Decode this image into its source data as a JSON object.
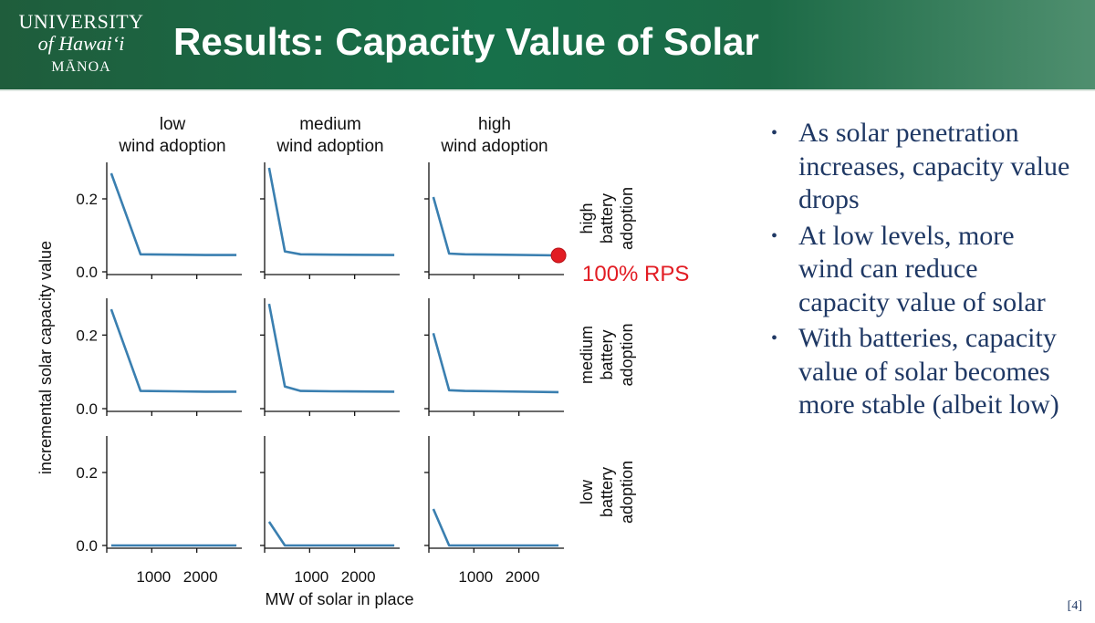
{
  "header": {
    "title": "Results: Capacity Value of Solar",
    "logo": {
      "line1": "University",
      "line2": "of Hawai‘i",
      "line3": "Mānoa"
    }
  },
  "colors": {
    "header_green": "#1f6b45",
    "series_line": "#3a7fb0",
    "marker_red": "#e21c23",
    "bullet_text": "#1f3864"
  },
  "bullets": [
    "As solar penetration increases, capacity value drops",
    "At low levels, more wind can reduce capacity value of solar",
    "With batteries, capacity value of solar becomes more stable (albeit low)"
  ],
  "page_number": "[4]",
  "chart_data": {
    "type": "line",
    "layout": "facet grid 3x3",
    "ylabel": "incremental solar capacity value",
    "xlabel": "MW of solar in place",
    "xticks": [
      1000,
      2000
    ],
    "yticks": [
      "0.0",
      "0.2"
    ],
    "ylim": [
      0,
      0.3
    ],
    "xlim": [
      0,
      3000
    ],
    "columns": [
      "low\nwind adoption",
      "medium\nwind adoption",
      "high\nwind adoption"
    ],
    "rows": [
      "high\nbattery\nadoption",
      "medium\nbattery\nadoption",
      "low\nbattery\nadoption"
    ],
    "annotation": {
      "text": "100% RPS",
      "row": 0,
      "col": 2,
      "x": 2880,
      "y": 0.045
    },
    "panels": [
      [
        {
          "x": [
            100,
            750,
            1500,
            2200,
            2880
          ],
          "y": [
            0.27,
            0.048,
            0.047,
            0.046,
            0.046
          ]
        },
        {
          "x": [
            100,
            450,
            800,
            1500,
            2880
          ],
          "y": [
            0.285,
            0.056,
            0.048,
            0.047,
            0.046
          ]
        },
        {
          "x": [
            100,
            450,
            800,
            1500,
            2880
          ],
          "y": [
            0.205,
            0.05,
            0.048,
            0.047,
            0.045
          ]
        }
      ],
      [
        {
          "x": [
            100,
            750,
            1500,
            2200,
            2880
          ],
          "y": [
            0.27,
            0.048,
            0.047,
            0.046,
            0.046
          ]
        },
        {
          "x": [
            100,
            450,
            800,
            1500,
            2880
          ],
          "y": [
            0.285,
            0.06,
            0.048,
            0.047,
            0.046
          ]
        },
        {
          "x": [
            100,
            450,
            800,
            1500,
            2880
          ],
          "y": [
            0.205,
            0.05,
            0.048,
            0.047,
            0.045
          ]
        }
      ],
      [
        {
          "x": [
            100,
            750,
            1500,
            2200,
            2880
          ],
          "y": [
            0.0,
            0.0,
            0.0,
            0.0,
            0.0
          ]
        },
        {
          "x": [
            100,
            450,
            800,
            1500,
            2880
          ],
          "y": [
            0.065,
            0.0,
            0.0,
            0.0,
            0.0
          ]
        },
        {
          "x": [
            100,
            450,
            800,
            1500,
            2880
          ],
          "y": [
            0.1,
            0.0,
            0.0,
            0.0,
            0.0
          ]
        }
      ]
    ]
  }
}
